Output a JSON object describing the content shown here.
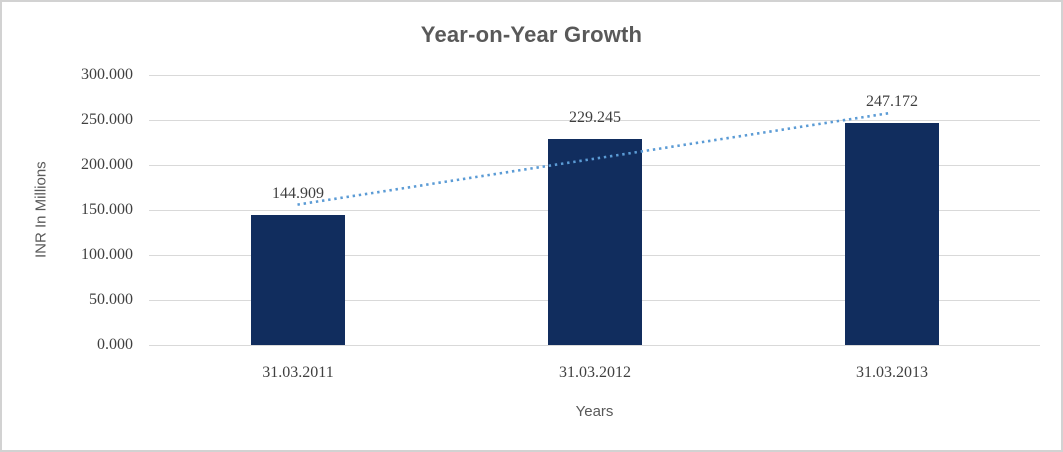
{
  "chart_data": {
    "type": "bar",
    "title": "Year-on-Year Growth",
    "xlabel": "Years",
    "ylabel": "INR In Millions",
    "categories": [
      "31.03.2011",
      "31.03.2012",
      "31.03.2013"
    ],
    "values": [
      144.909,
      229.245,
      247.172
    ],
    "data_labels": [
      "144.909",
      "229.245",
      "247.172"
    ],
    "ylim": [
      0,
      300
    ],
    "ytick_labels": [
      "0.000",
      "50.000",
      "100.000",
      "150.000",
      "200.000",
      "250.000",
      "300.000"
    ],
    "ytick_values": [
      0,
      50,
      100,
      150,
      200,
      250,
      300
    ],
    "grid": true,
    "legend": "none",
    "trendline": {
      "type": "linear",
      "style": "dotted",
      "start_value": 156,
      "end_value": 258
    },
    "colors": {
      "bar": "#112d5e",
      "trendline": "#5b9bd5",
      "gridline": "#d9d9d9",
      "title_text": "#595959",
      "axis_title_text": "#595959",
      "tick_text": "#3f3f3f",
      "data_label_text": "#3f3f3f",
      "background": "#ffffff",
      "border": "#d2d2d2"
    }
  }
}
